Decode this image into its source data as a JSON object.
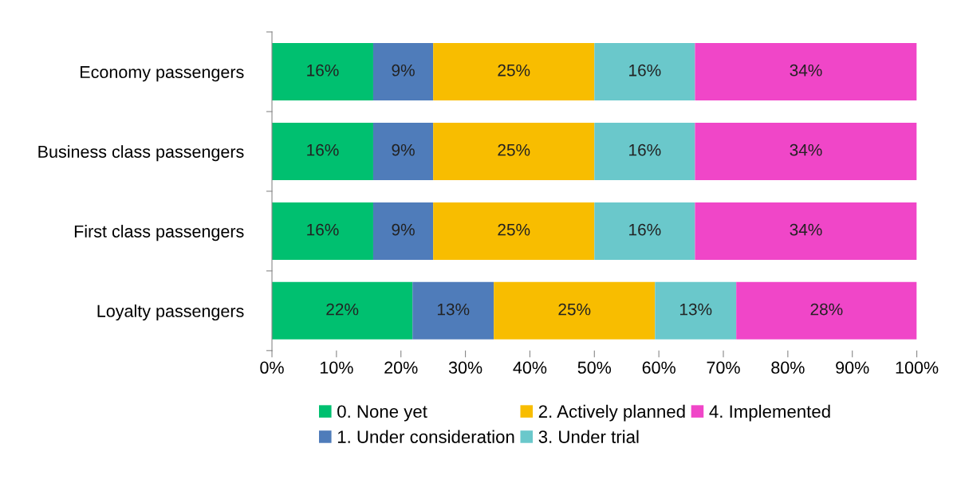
{
  "chart_data": {
    "type": "bar",
    "orientation": "horizontal",
    "stacked": true,
    "categories": [
      "Economy passengers",
      "Business class passengers",
      "First class passengers",
      "Loyalty passengers"
    ],
    "series": [
      {
        "name": "0. None yet",
        "color": "#00c070",
        "values": [
          15.7,
          15.7,
          15.7,
          21.8
        ],
        "value_labels": [
          "16%",
          "16%",
          "16%",
          "22%"
        ]
      },
      {
        "name": "1. Under consideration",
        "color": "#4f7cba",
        "values": [
          9.3,
          9.3,
          9.3,
          12.6
        ],
        "value_labels": [
          "9%",
          "9%",
          "9%",
          "13%"
        ]
      },
      {
        "name": "2. Actively planned",
        "color": "#f8bd00",
        "values": [
          25,
          25,
          25,
          25
        ],
        "value_labels": [
          "25%",
          "25%",
          "25%",
          "25%"
        ]
      },
      {
        "name": "3. Under trial",
        "color": "#6ac8cb",
        "values": [
          15.6,
          15.6,
          15.6,
          12.6
        ],
        "value_labels": [
          "16%",
          "16%",
          "16%",
          "13%"
        ]
      },
      {
        "name": "4. Implemented",
        "color": "#f046c8",
        "values": [
          34.4,
          34.4,
          34.4,
          28
        ],
        "value_labels": [
          "34%",
          "34%",
          "34%",
          "28%"
        ]
      }
    ],
    "xlim": [
      0,
      100
    ],
    "xticks": [
      {
        "value": 0,
        "label": "0%"
      },
      {
        "value": 10,
        "label": "10%"
      },
      {
        "value": 20,
        "label": "20%"
      },
      {
        "value": 30,
        "label": "30%"
      },
      {
        "value": 40,
        "label": "40%"
      },
      {
        "value": 50,
        "label": "50%"
      },
      {
        "value": 60,
        "label": "60%"
      },
      {
        "value": 70,
        "label": "70%"
      },
      {
        "value": 80,
        "label": "80%"
      },
      {
        "value": 90,
        "label": "90%"
      },
      {
        "value": 100,
        "label": "100%"
      }
    ],
    "grid": false,
    "legend": "bottom"
  }
}
